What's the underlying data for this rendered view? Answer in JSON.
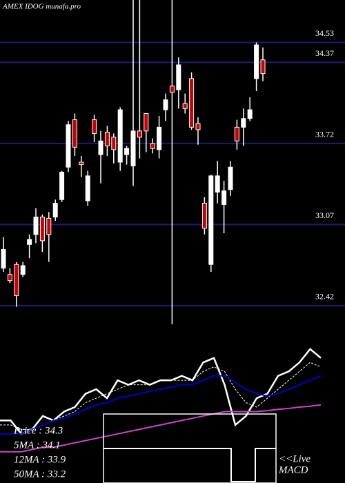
{
  "chart_data": {
    "type": "candlestick",
    "title": "AMEX IDOG munafa.pro",
    "ylim": [
      32.27,
      34.87
    ],
    "yticks": [
      34.53,
      34.37,
      33.72,
      33.07,
      32.42
    ],
    "grid_color": "#1c1c78",
    "up_color": "#ffffff",
    "down_color": "#cc0000",
    "open": [
      32.72,
      32.67,
      32.75,
      32.67,
      32.91,
      32.99,
      33.13,
      33.12,
      33.13,
      33.27,
      33.53,
      33.91,
      33.57,
      33.26,
      33.91,
      33.63,
      33.81,
      33.77,
      33.57,
      33.63,
      33.54,
      33.82,
      33.96,
      33.72,
      33.67,
      33.99,
      34.18,
      34.15,
      34.04,
      34.24,
      33.88,
      33.24,
      32.75,
      33.33,
      33.23,
      33.35,
      33.85,
      33.85,
      33.92,
      34.24,
      34.39
    ],
    "close": [
      32.87,
      32.62,
      32.5,
      32.74,
      32.95,
      33.13,
      32.94,
      32.99,
      33.24,
      33.49,
      33.87,
      33.69,
      33.55,
      33.46,
      33.8,
      33.74,
      33.7,
      33.67,
      33.99,
      33.68,
      33.82,
      33.77,
      33.82,
      33.68,
      33.85,
      34.07,
      34.13,
      34.35,
      34.0,
      33.85,
      33.83,
      33.04,
      33.46,
      33.46,
      33.34,
      33.53,
      33.74,
      33.92,
      33.99,
      34.51,
      34.28
    ],
    "high": [
      32.97,
      32.72,
      32.77,
      32.77,
      32.99,
      33.2,
      33.15,
      33.17,
      33.27,
      33.5,
      33.9,
      33.96,
      33.62,
      33.5,
      33.95,
      33.82,
      33.86,
      33.8,
      34.01,
      33.7,
      34.87,
      34.87,
      33.96,
      33.76,
      33.94,
      34.12,
      34.87,
      34.41,
      34.12,
      34.29,
      33.93,
      33.29,
      33.47,
      33.58,
      33.42,
      33.58,
      33.91,
      34.0,
      34.09,
      34.53,
      34.49
    ],
    "low": [
      32.69,
      32.6,
      32.41,
      32.65,
      32.8,
      32.92,
      32.85,
      32.77,
      33.1,
      33.25,
      33.49,
      33.62,
      33.45,
      33.22,
      33.73,
      33.4,
      33.62,
      33.56,
      33.5,
      33.55,
      33.38,
      33.6,
      33.65,
      33.64,
      33.6,
      33.9,
      32.27,
      34.0,
      33.96,
      33.83,
      33.71,
      32.99,
      32.69,
      33.24,
      33.0,
      33.3,
      33.67,
      33.7,
      33.9,
      34.14,
      34.22
    ],
    "lower_panel": {
      "ylim": [
        31.5,
        34.9
      ],
      "series": [
        {
          "color": "#ffffff",
          "width": 2.5,
          "values": [
            32.9,
            32.9,
            32.6,
            32.7,
            33.0,
            32.9,
            33.1,
            33.2,
            33.5,
            33.6,
            33.4,
            33.8,
            33.7,
            33.8,
            33.7,
            33.8,
            33.8,
            33.9,
            33.8,
            34.2,
            34.3,
            33.7,
            32.8,
            33.0,
            33.4,
            33.5,
            33.9,
            34.0,
            34.2,
            34.5,
            34.3
          ]
        },
        {
          "color": "#ffffff",
          "width": 1,
          "values": [
            32.8,
            32.8,
            32.7,
            32.7,
            32.8,
            32.9,
            33.0,
            33.1,
            33.3,
            33.4,
            33.5,
            33.6,
            33.7,
            33.7,
            33.7,
            33.8,
            33.8,
            33.8,
            33.8,
            34.0,
            34.1,
            34.0,
            33.6,
            33.3,
            33.2,
            33.4,
            33.6,
            33.8,
            34.0,
            34.2,
            34.1
          ]
        },
        {
          "color": "#0000cc",
          "width": 2,
          "values": [
            32.6,
            32.6,
            32.6,
            32.7,
            32.8,
            32.9,
            32.95,
            33.05,
            33.15,
            33.25,
            33.3,
            33.4,
            33.45,
            33.5,
            33.55,
            33.6,
            33.65,
            33.7,
            33.7,
            33.8,
            33.9,
            33.9,
            33.75,
            33.6,
            33.5,
            33.45,
            33.5,
            33.6,
            33.7,
            33.8,
            33.9
          ]
        },
        {
          "color": "#cc44cc",
          "width": 2,
          "values": [
            32.2,
            32.2,
            32.2,
            32.25,
            32.3,
            32.3,
            32.35,
            32.4,
            32.45,
            32.5,
            32.55,
            32.6,
            32.65,
            32.7,
            32.75,
            32.8,
            32.85,
            32.9,
            32.95,
            33.0,
            33.05,
            33.1,
            33.1,
            33.1,
            33.1,
            33.12,
            33.15,
            33.17,
            33.2,
            33.22,
            33.25
          ]
        }
      ]
    },
    "legend_labels": [
      "Price  : 34.3",
      "5MA  : 34.1",
      "12MA  : 33.9",
      "50MA  : 33.2"
    ],
    "macd_label": [
      "<<Live",
      "MACD"
    ]
  }
}
